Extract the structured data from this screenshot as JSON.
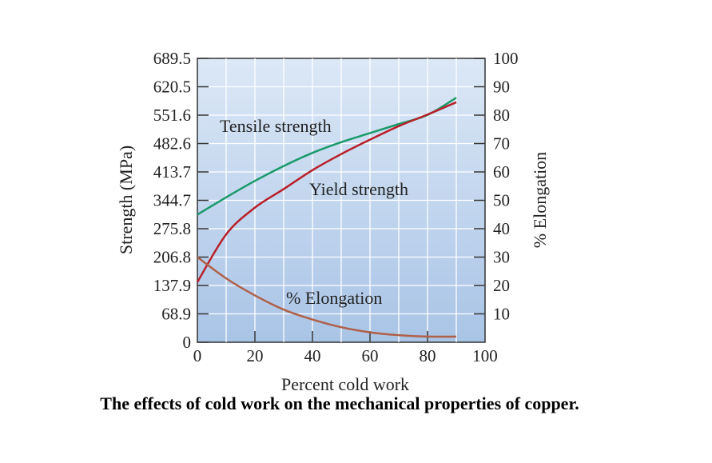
{
  "chart_data": {
    "type": "line",
    "title": "",
    "caption": "The effects of cold work on the mechanical properties of copper.",
    "xlabel": "Percent cold work",
    "ylabel": "Strength (MPa)",
    "y2label": "% Elongation",
    "xlim": [
      0,
      100
    ],
    "ylim": [
      0,
      689.5
    ],
    "y2lim": [
      0,
      100
    ],
    "x_ticks": [
      "0",
      "20",
      "40",
      "60",
      "80",
      "100"
    ],
    "y_ticks": [
      "0",
      "68.9",
      "137.9",
      "206.8",
      "275.8",
      "344.7",
      "413.7",
      "482.6",
      "551.6",
      "620.5",
      "689.5"
    ],
    "y2_ticks": [
      "10",
      "20",
      "30",
      "40",
      "50",
      "60",
      "70",
      "80",
      "90",
      "100"
    ],
    "grid": true,
    "series": [
      {
        "name": "Tensile strength",
        "axis": "left",
        "color": "#1a9a6a",
        "x": [
          0,
          10,
          20,
          30,
          40,
          50,
          60,
          70,
          80,
          90
        ],
        "y": [
          310,
          352,
          392,
          428,
          460,
          486,
          508,
          530,
          552,
          594
        ]
      },
      {
        "name": "Yield strength",
        "axis": "left",
        "color": "#b8202a",
        "x": [
          0,
          10,
          20,
          30,
          40,
          50,
          60,
          70,
          80,
          90
        ],
        "y": [
          146,
          262,
          327,
          372,
          418,
          457,
          492,
          525,
          553,
          583
        ]
      },
      {
        "name": "% Elongation",
        "axis": "right",
        "color": "#b06048",
        "x": [
          0,
          10,
          20,
          30,
          40,
          50,
          60,
          70,
          80,
          90
        ],
        "y": [
          30,
          22.5,
          16.5,
          11.5,
          8,
          5.3,
          3.5,
          2.5,
          2,
          2
        ]
      }
    ],
    "label_positions": "inline"
  }
}
